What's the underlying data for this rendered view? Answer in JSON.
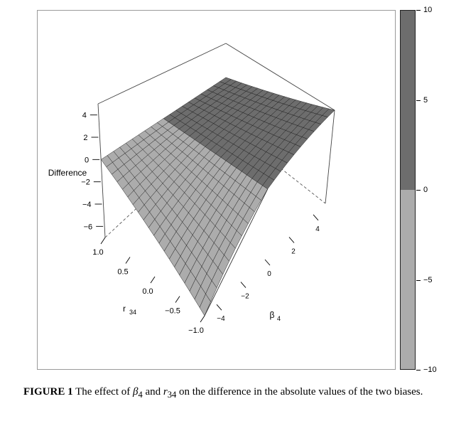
{
  "chart_data": {
    "type": "surface",
    "zlabel": "Difference",
    "xlabel": "r34",
    "ylabel": "β4",
    "x_ticks": [
      "1.0",
      "0.5",
      "0.0",
      "−0.5",
      "−1.0"
    ],
    "y_ticks": [
      "−4",
      "−2",
      "0",
      "2",
      "4"
    ],
    "z_ticks": [
      "4",
      "2",
      "0",
      "−2",
      "−4",
      "−6"
    ],
    "x_range": [
      -1,
      1
    ],
    "y_range": [
      -5,
      5
    ],
    "z_range": [
      -7,
      5
    ],
    "surface_points": [
      {
        "r34": 1.0,
        "beta4": -5,
        "difference": 0
      },
      {
        "r34": 1.0,
        "beta4": 0,
        "difference": 0
      },
      {
        "r34": 1.0,
        "beta4": 5,
        "difference": 0
      },
      {
        "r34": 0.0,
        "beta4": -5,
        "difference": -2.5
      },
      {
        "r34": 0.0,
        "beta4": 0,
        "difference": 0
      },
      {
        "r34": 0.0,
        "beta4": 5,
        "difference": 2.5
      },
      {
        "r34": -1.0,
        "beta4": -5,
        "difference": -7
      },
      {
        "r34": -1.0,
        "beta4": 0,
        "difference": 0
      },
      {
        "r34": -1.0,
        "beta4": 5,
        "difference": 5
      }
    ],
    "colorbar": {
      "min": -10,
      "max": 10,
      "ticks": [
        "10",
        "5",
        "0",
        "−5",
        "−10"
      ],
      "colors": {
        "positive": "#6d6d6d",
        "negative": "#acacac"
      }
    }
  },
  "caption": {
    "label": "FIGURE 1",
    "text_before": " The effect of ",
    "beta_symbol": "β",
    "beta_sub": "4",
    "text_mid": " and ",
    "r_symbol": "r",
    "r_sub": "34",
    "text_after": " on the difference in the absolute values of the two biases."
  }
}
